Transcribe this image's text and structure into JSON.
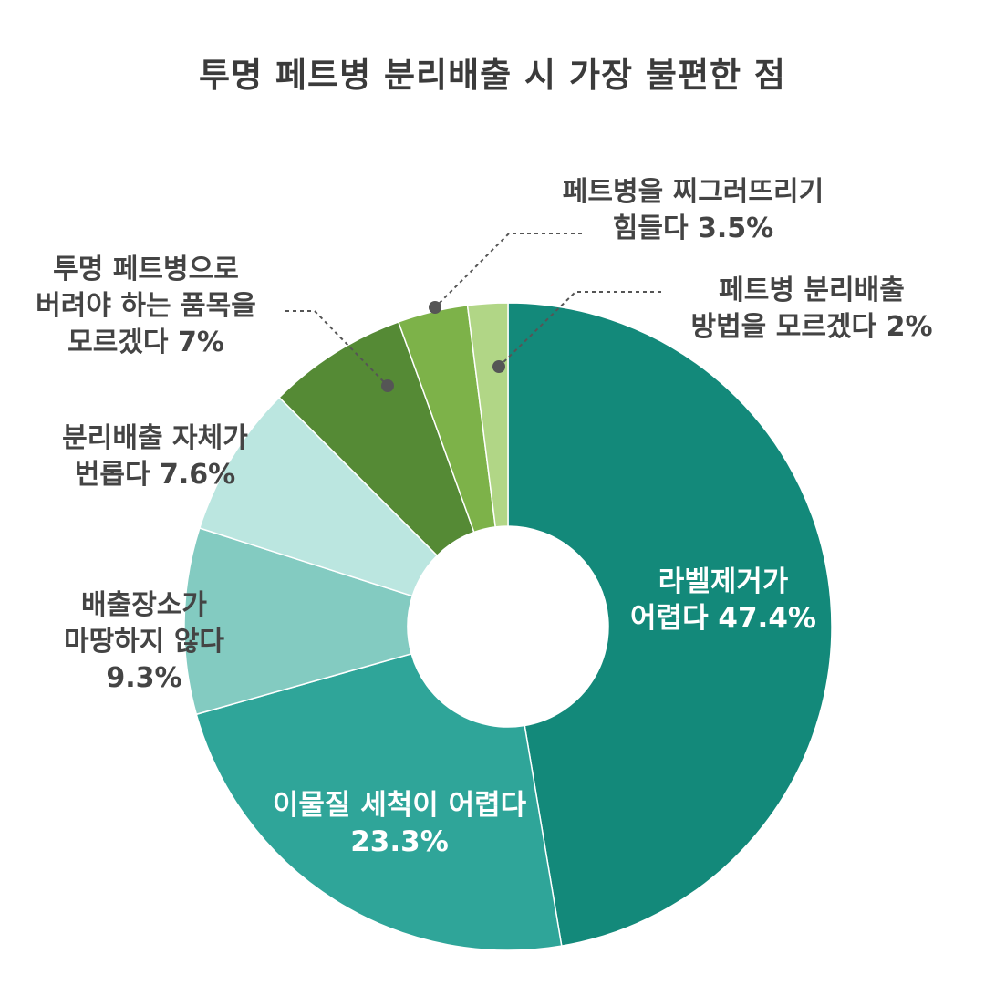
{
  "chart_data": {
    "type": "pie",
    "title": "투명 페트병 분리배출 시 가장 불편한 점",
    "slices": [
      {
        "lines": [
          "라벨제거가",
          "어렵다 47.4%"
        ],
        "value": 47.4,
        "color": "#13897a"
      },
      {
        "lines": [
          "이물질 세척이 어렵다",
          "23.3%"
        ],
        "value": 23.3,
        "color": "#2fa599"
      },
      {
        "lines": [
          "배출장소가",
          "마땅하지 않다",
          "9.3%"
        ],
        "value": 9.3,
        "color": "#83cbc1"
      },
      {
        "lines": [
          "분리배출 자체가",
          "번롭다 7.6%"
        ],
        "value": 7.6,
        "color": "#bbe6e0"
      },
      {
        "lines": [
          "투명 페트병으로",
          "버려야 하는 품목을",
          "모르겠다 7%"
        ],
        "value": 7.0,
        "color": "#558a35"
      },
      {
        "lines": [
          "페트병을 찌그러뜨리기",
          "힘들다 3.5%"
        ],
        "value": 3.5,
        "color": "#7db249"
      },
      {
        "lines": [
          "페트병 분리배출",
          "방법을 모르겠다 2%"
        ],
        "value": 2.0,
        "color": "#b1d686"
      }
    ],
    "legend": "none"
  },
  "colors": {
    "title": "#3b3b3b",
    "outside_label": "#444444",
    "inside_label": "#ffffff",
    "leader": "#555555"
  }
}
